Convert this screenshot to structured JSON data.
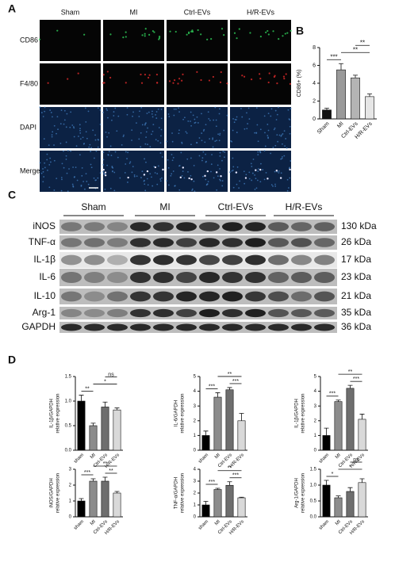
{
  "panel_labels": [
    "A",
    "B",
    "C",
    "D"
  ],
  "panel_a": {
    "columns": [
      "Sham",
      "MI",
      "Ctrl-EVs",
      "H/R-EVs"
    ],
    "rows": [
      "CD86",
      "F4/80",
      "DAPI",
      "Merge"
    ]
  },
  "panel_c": {
    "groups": [
      "Sham",
      "MI",
      "Ctrl-EVs",
      "H/R-EVs"
    ],
    "bands": [
      {
        "name": "iNOS",
        "size": "130 kDa"
      },
      {
        "name": "TNF-α",
        "size": "26 kDa"
      },
      {
        "name": "IL-1β",
        "size": "17 kDa"
      },
      {
        "name": "IL-6",
        "size": "23 kDa"
      },
      {
        "name": "IL-10",
        "size": "21 kDa"
      },
      {
        "name": "Arg-1",
        "size": "35 kDa"
      },
      {
        "name": "GAPDH",
        "size": "36 kDa"
      }
    ]
  },
  "chart_data": [
    {
      "type": "bar",
      "ylabel": [
        "CD86+ (%)"
      ],
      "categories": [
        "Sham",
        "MI",
        "Ctrl-EVs",
        "H/R-EVs"
      ],
      "values": [
        1.0,
        5.5,
        4.6,
        2.5
      ],
      "errors": [
        0.2,
        0.7,
        0.3,
        0.3
      ],
      "colors": [
        "#111111",
        "#9a9a9a",
        "#b4b4b4",
        "#e6e6e6"
      ],
      "ylim": [
        0,
        8
      ],
      "yticks": [
        0,
        2,
        4,
        6,
        8
      ],
      "annotations": [
        {
          "text": "***",
          "between": [
            "Sham",
            "MI"
          ]
        },
        {
          "text": "**",
          "between": [
            "MI",
            "H/R-EVs"
          ]
        },
        {
          "text": "**",
          "between": [
            "Ctrl-EVs",
            "H/R-EVs"
          ]
        }
      ]
    },
    {
      "type": "bar",
      "ylabel": [
        "IL-1β/GAPDH",
        "relative expression"
      ],
      "categories": [
        "sham",
        "MI",
        "Ctrl-EVs",
        "H/R-EVs"
      ],
      "values": [
        1.0,
        0.5,
        0.88,
        0.82
      ],
      "errors": [
        0.12,
        0.05,
        0.1,
        0.04
      ],
      "colors": [
        "#000000",
        "#8c8c8c",
        "#6e6e6e",
        "#d9d9d9"
      ],
      "ylim": [
        0,
        1.5
      ],
      "yticks": [
        {
          "value": 0,
          "label": "0.0"
        },
        0.5,
        {
          "value": 1,
          "label": "1.0"
        },
        1.5
      ],
      "annotations": [
        {
          "text": "**",
          "between": [
            "sham",
            "MI"
          ]
        },
        {
          "text": "*",
          "between": [
            "MI",
            "H/R-EVs"
          ]
        },
        {
          "text": "ns",
          "between": [
            "Ctrl-EVs",
            "H/R-EVs"
          ]
        }
      ]
    },
    {
      "type": "bar",
      "ylabel": [
        "IL-6/GAPDH",
        "relative expression"
      ],
      "categories": [
        "sham",
        "MI",
        "Ctrl-EVs",
        "H/R-EVs"
      ],
      "values": [
        1.0,
        3.6,
        4.1,
        2.0
      ],
      "errors": [
        0.3,
        0.3,
        0.15,
        0.5
      ],
      "colors": [
        "#000000",
        "#8c8c8c",
        "#6e6e6e",
        "#d9d9d9"
      ],
      "ylim": [
        0,
        5
      ],
      "yticks": [
        0,
        1,
        2,
        3,
        4,
        5
      ],
      "annotations": [
        {
          "text": "***",
          "between": [
            "sham",
            "MI"
          ]
        },
        {
          "text": "***",
          "between": [
            "Ctrl-EVs",
            "H/R-EVs"
          ]
        },
        {
          "text": "**",
          "between": [
            "MI",
            "H/R-EVs"
          ]
        }
      ]
    },
    {
      "type": "bar",
      "ylabel": [
        "IL-1β/GAPDH",
        "relative expression"
      ],
      "categories": [
        "sham",
        "MI",
        "Ctrl-EVs",
        "H/R-EVs"
      ],
      "values": [
        1.0,
        3.3,
        4.2,
        2.1
      ],
      "errors": [
        0.5,
        0.1,
        0.2,
        0.35
      ],
      "colors": [
        "#000000",
        "#8c8c8c",
        "#6e6e6e",
        "#d9d9d9"
      ],
      "ylim": [
        0,
        5
      ],
      "yticks": [
        0,
        1,
        2,
        3,
        4,
        5
      ],
      "annotations": [
        {
          "text": "***",
          "between": [
            "sham",
            "MI"
          ]
        },
        {
          "text": "***",
          "between": [
            "Ctrl-EVs",
            "H/R-EVs"
          ]
        },
        {
          "text": "**",
          "between": [
            "MI",
            "H/R-EVs"
          ]
        }
      ]
    },
    {
      "type": "bar",
      "ylabel": [
        "iNOS/GAPDH",
        "relative expression"
      ],
      "categories": [
        "sham",
        "MI",
        "Ctrl-EVs",
        "H/R-EVs"
      ],
      "values": [
        1.0,
        2.25,
        2.25,
        1.5
      ],
      "errors": [
        0.15,
        0.15,
        0.25,
        0.1
      ],
      "colors": [
        "#000000",
        "#8c8c8c",
        "#6e6e6e",
        "#d9d9d9"
      ],
      "ylim": [
        0,
        3
      ],
      "yticks": [
        0,
        1,
        2,
        3
      ],
      "annotations": [
        {
          "text": "***",
          "between": [
            "sham",
            "MI"
          ]
        },
        {
          "text": "**",
          "between": [
            "Ctrl-EVs",
            "H/R-EVs"
          ]
        },
        {
          "text": "**",
          "between": [
            "MI",
            "H/R-EVs"
          ]
        }
      ]
    },
    {
      "type": "bar",
      "ylabel": [
        "TNF-α/GAPDH",
        "relative expression"
      ],
      "categories": [
        "sham",
        "MI",
        "Ctrl-EVs",
        "H/R-EVs"
      ],
      "values": [
        1.0,
        2.3,
        2.65,
        1.6
      ],
      "errors": [
        0.3,
        0.1,
        0.3,
        0.05
      ],
      "colors": [
        "#000000",
        "#8c8c8c",
        "#6e6e6e",
        "#d9d9d9"
      ],
      "ylim": [
        0,
        4
      ],
      "yticks": [
        0,
        1,
        2,
        3,
        4
      ],
      "annotations": [
        {
          "text": "***",
          "between": [
            "sham",
            "MI"
          ]
        },
        {
          "text": "***",
          "between": [
            "Ctrl-EVs",
            "H/R-EVs"
          ]
        },
        {
          "text": "**",
          "between": [
            "MI",
            "H/R-EVs"
          ]
        }
      ]
    },
    {
      "type": "bar",
      "ylabel": [
        "Arg-1/GAPDH",
        "relative expression"
      ],
      "categories": [
        "sham",
        "MI",
        "Ctrl-EVs",
        "H/R-EVs"
      ],
      "values": [
        1.0,
        0.6,
        0.8,
        1.08
      ],
      "errors": [
        0.15,
        0.06,
        0.12,
        0.12
      ],
      "colors": [
        "#000000",
        "#8c8c8c",
        "#6e6e6e",
        "#d9d9d9"
      ],
      "ylim": [
        0,
        1.5
      ],
      "yticks": [
        {
          "value": 0,
          "label": "0.0"
        },
        0.5,
        {
          "value": 1,
          "label": "1.0"
        },
        1.5
      ],
      "annotations": [
        {
          "text": "*",
          "between": [
            "sham",
            "MI"
          ]
        },
        {
          "text": "*",
          "between": [
            "MI",
            "H/R-EVs"
          ]
        },
        {
          "text": "ns",
          "between": [
            "Ctrl-EVs",
            "H/R-EVs"
          ]
        }
      ]
    }
  ]
}
